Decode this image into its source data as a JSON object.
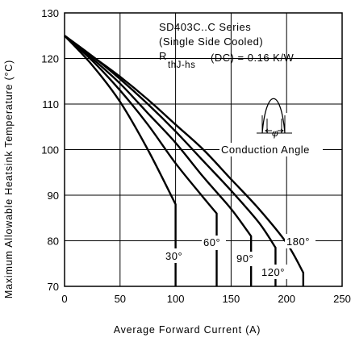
{
  "chart_data": {
    "type": "line",
    "xlabel": "Average Forward Current (A)",
    "ylabel": "Maximum Allowable Heatsink Temperature (°C)",
    "xlim": [
      0,
      250
    ],
    "ylim": [
      70,
      130
    ],
    "xticks": [
      0,
      50,
      100,
      150,
      200,
      250
    ],
    "yticks": [
      70,
      80,
      90,
      100,
      110,
      120,
      130
    ],
    "grid": true,
    "annotations": {
      "series_name": "SD403C..C Series",
      "cooling": "(Single Side Cooled)",
      "rth_symbol": "R",
      "rth_subscript": "thJ-hs",
      "rth_value": "(DC) = 0.16 K/W",
      "waveform_label": "Conduction Angle",
      "phi": "φ"
    },
    "series": [
      {
        "name": "30°",
        "x": [
          0,
          25,
          50,
          75,
          100,
          100
        ],
        "y": [
          125,
          118.5,
          110.5,
          100,
          88,
          70
        ]
      },
      {
        "name": "60°",
        "x": [
          0,
          25,
          50,
          75,
          100,
          125,
          137,
          137
        ],
        "y": [
          125,
          119.5,
          113,
          105.5,
          97,
          89.5,
          86,
          70
        ]
      },
      {
        "name": "90°",
        "x": [
          0,
          25,
          50,
          75,
          100,
          125,
          150,
          168,
          168
        ],
        "y": [
          125,
          120,
          114.5,
          108,
          101.5,
          94,
          87,
          81,
          70
        ]
      },
      {
        "name": "120°",
        "x": [
          0,
          25,
          50,
          75,
          100,
          125,
          150,
          175,
          190,
          190
        ],
        "y": [
          125,
          120.5,
          115.5,
          110,
          104,
          97.5,
          91,
          84,
          78.5,
          70
        ]
      },
      {
        "name": "180°",
        "x": [
          0,
          25,
          50,
          75,
          100,
          125,
          150,
          175,
          200,
          215,
          215
        ],
        "y": [
          125,
          120.5,
          116,
          111,
          105.5,
          100,
          93.5,
          87,
          79.5,
          73,
          70
        ]
      }
    ]
  }
}
